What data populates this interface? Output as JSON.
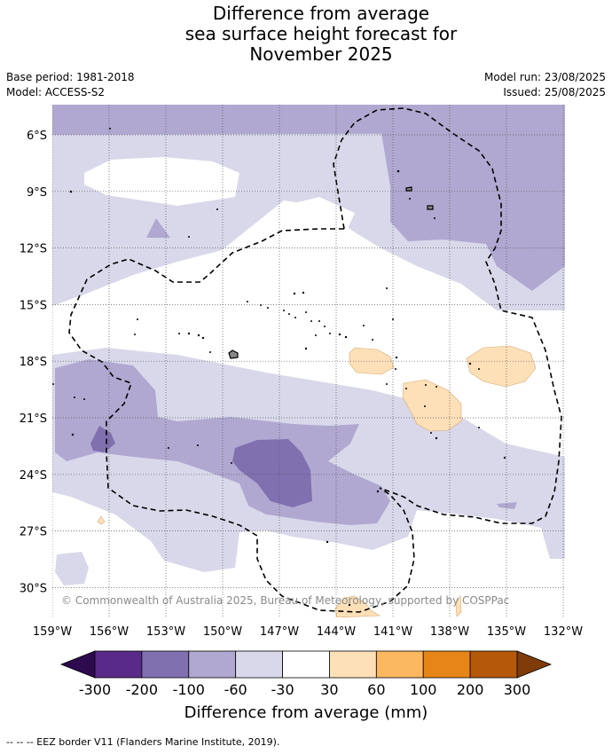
{
  "title_lines": [
    "Difference from average",
    "sea surface height forecast for",
    "November 2025"
  ],
  "meta": {
    "base_period": "Base period: 1981-2018",
    "model": "Model: ACCESS-S2",
    "model_run": "Model run: 23/08/2025",
    "issued": "Issued: 25/08/2025"
  },
  "map": {
    "lon_ticks": [
      "159°W",
      "156°W",
      "153°W",
      "150°W",
      "147°W",
      "144°W",
      "141°W",
      "138°W",
      "135°W",
      "132°W"
    ],
    "lat_ticks": [
      "6°S",
      "9°S",
      "12°S",
      "15°S",
      "18°S",
      "21°S",
      "24°S",
      "27°S",
      "30°S"
    ],
    "copyright": "© Commonwealth of Australia 2025, Bureau of Meteorology, supported by COSPPac"
  },
  "colorbar": {
    "colors": [
      "#5a2a8a",
      "#8070b0",
      "#b0a8d0",
      "#d8d8ea",
      "#ffffff",
      "#fde0b8",
      "#fbb860",
      "#e68518",
      "#b4580a"
    ],
    "end_colors": {
      "low": "#2d0a4e",
      "high": "#7f3b08"
    },
    "labels": [
      "-300",
      "-200",
      "-100",
      "-60",
      "-30",
      "30",
      "60",
      "100",
      "200",
      "300"
    ],
    "title": "Difference from average (mm)"
  },
  "footnote": "--  --  -- EEZ border V11 (Flanders Marine Institute, 2019)."
}
